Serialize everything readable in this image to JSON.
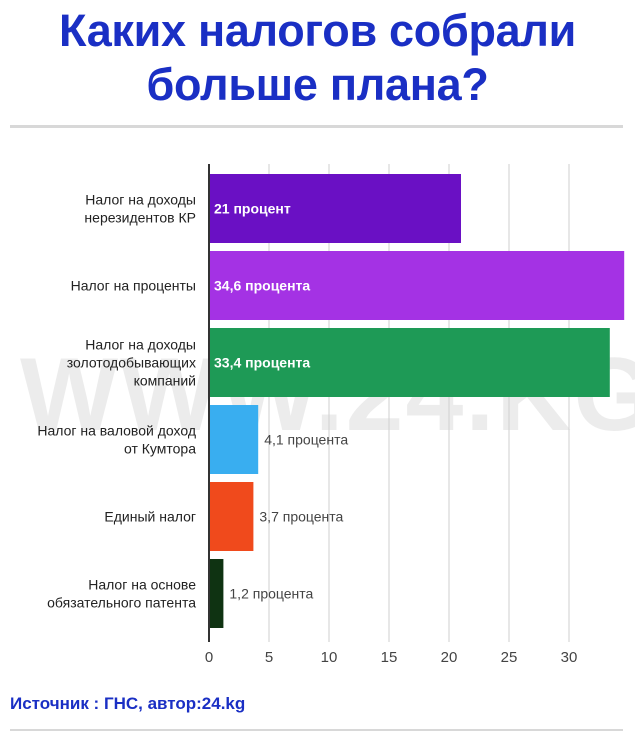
{
  "title": "Каких налогов собрали больше плана?",
  "watermark": "WWW.24.KG",
  "source": "Источник : ГНС, автор:24.kg",
  "chart_data": {
    "type": "bar",
    "orientation": "horizontal",
    "title": "Каких налогов собрали больше плана?",
    "xlabel": "",
    "ylabel": "",
    "xlim": [
      0,
      35
    ],
    "xticks": [
      0,
      5,
      10,
      15,
      20,
      25,
      30
    ],
    "grid": true,
    "legend": "none",
    "bars": [
      {
        "label_lines": [
          "Налог на доходы",
          "нерезидентов КР"
        ],
        "value": 21,
        "data_label": "21 процент",
        "color": "#6a10c4",
        "label_inside": true
      },
      {
        "label_lines": [
          "Налог на проценты"
        ],
        "value": 34.6,
        "data_label": "34,6 процента",
        "color": "#a432e4",
        "label_inside": true
      },
      {
        "label_lines": [
          "Налог на доходы",
          "золотодобывающих",
          "компаний"
        ],
        "value": 33.4,
        "data_label": "33,4 процента",
        "color": "#1e9a56",
        "label_inside": true
      },
      {
        "label_lines": [
          "Налог на валовой доход",
          "от Кумтора"
        ],
        "value": 4.1,
        "data_label": "4,1 процента",
        "color": "#39aef0",
        "label_inside": false
      },
      {
        "label_lines": [
          "Единый налог"
        ],
        "value": 3.7,
        "data_label": "3,7 процента",
        "color": "#f04a1c",
        "label_inside": false
      },
      {
        "label_lines": [
          "Налог на основе",
          "обязательного патента"
        ],
        "value": 1.2,
        "data_label": "1,2 процента",
        "color": "#0f3312",
        "label_inside": false
      }
    ]
  }
}
